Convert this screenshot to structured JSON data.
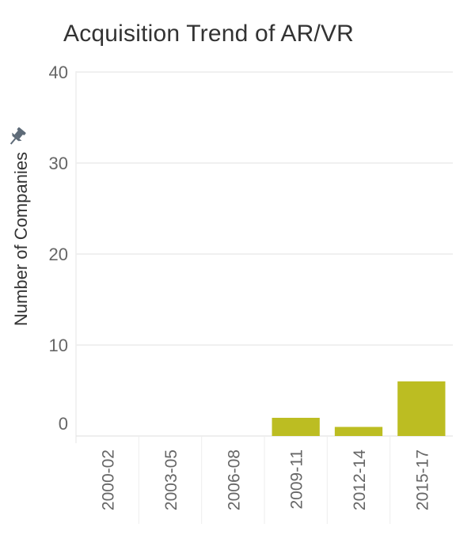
{
  "chart_data": {
    "type": "bar",
    "title": "Acquisition Trend of AR/VR",
    "ylabel": "Number of Companies",
    "xlabel": "",
    "categories": [
      "2000-02",
      "2003-05",
      "2006-08",
      "2009-11",
      "2012-14",
      "2015-17"
    ],
    "values": [
      0,
      0,
      0,
      2,
      1,
      6
    ],
    "ylim": [
      0,
      40
    ],
    "yticks": [
      0,
      10,
      20,
      30,
      40
    ],
    "grid": true,
    "bar_color": "#BCBD22"
  },
  "icons": {
    "pin": "pin-icon"
  }
}
